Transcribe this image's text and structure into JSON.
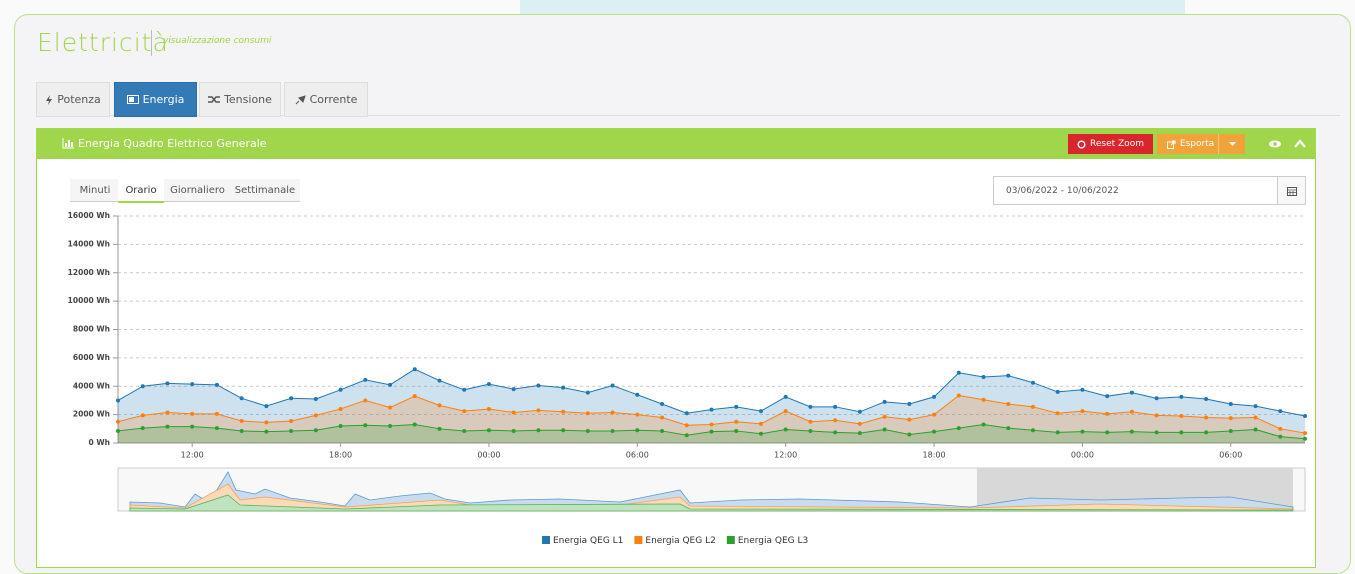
{
  "header": {
    "title": "Elettricità",
    "subtitle": "visualizzazione consumi"
  },
  "tabs": [
    "Potenza",
    "Energia",
    "Tensione",
    "Corrente"
  ],
  "panel": {
    "title": "Energia Quadro Elettrico Generale",
    "buttons": [
      "Reset Zoom",
      "Esporta"
    ]
  },
  "period_tabs": [
    "Minuti",
    "Orario",
    "Giornaliero",
    "Settimanale"
  ],
  "date_range": "03/06/2022 - 10/06/2022",
  "chart_data": {
    "type": "area",
    "categories": [
      null,
      null,
      null,
      "12:00",
      null,
      null,
      null,
      null,
      null,
      "18:00",
      null,
      null,
      null,
      null,
      null,
      "00:00",
      null,
      null,
      null,
      null,
      null,
      "06:00",
      null,
      null,
      null,
      null,
      null,
      "12:00",
      null,
      null,
      null,
      null,
      null,
      "18:00",
      null,
      null,
      null,
      null,
      null,
      "00:00",
      null,
      null,
      null,
      null,
      null,
      "06:00",
      null,
      null,
      null
    ],
    "ylim": [
      0,
      16000
    ],
    "yticks": [
      {
        "value": 0,
        "label": "0 Wh"
      },
      {
        "value": 2000,
        "label": "2000 Wh"
      },
      {
        "value": 4000,
        "label": "4000 Wh"
      },
      {
        "value": 6000,
        "label": "6000 Wh"
      },
      {
        "value": 8000,
        "label": "8000 Wh"
      },
      {
        "value": 10000,
        "label": "10000 Wh"
      },
      {
        "value": 12000,
        "label": "12000 Wh"
      },
      {
        "value": 14000,
        "label": "14000 Wh"
      },
      {
        "value": 16000,
        "label": "16000 Wh"
      }
    ],
    "grid": true,
    "series": [
      {
        "name": "Energia QEG L1",
        "color": "#1f77b4",
        "values": [
          3000,
          4000,
          4200,
          4150,
          4100,
          3150,
          2600,
          3150,
          3100,
          3750,
          4450,
          4100,
          5200,
          4400,
          3750,
          4150,
          3800,
          4050,
          3900,
          3550,
          4050,
          3400,
          2750,
          2100,
          2350,
          2550,
          2250,
          3250,
          2550,
          2550,
          2200,
          2900,
          2750,
          3250,
          4950,
          4650,
          4750,
          4250,
          3600,
          3750,
          3300,
          3550,
          3150,
          3250,
          3100,
          2750,
          2600,
          2250,
          1900
        ]
      },
      {
        "name": "Energia QEG L2",
        "color": "#ff7f0e",
        "values": [
          1500,
          1950,
          2150,
          2050,
          2050,
          1550,
          1450,
          1550,
          1950,
          2400,
          3000,
          2500,
          3300,
          2650,
          2250,
          2400,
          2150,
          2300,
          2200,
          2100,
          2150,
          2000,
          1800,
          1250,
          1300,
          1500,
          1350,
          2250,
          1500,
          1600,
          1350,
          1850,
          1650,
          2000,
          3350,
          3050,
          2750,
          2550,
          2100,
          2250,
          2050,
          2200,
          1950,
          1900,
          1800,
          1750,
          1800,
          1000,
          700
        ]
      },
      {
        "name": "Energia QEG L3",
        "color": "#2ca02c",
        "values": [
          850,
          1050,
          1150,
          1150,
          1050,
          850,
          800,
          850,
          900,
          1200,
          1250,
          1200,
          1300,
          1000,
          850,
          900,
          850,
          900,
          900,
          850,
          850,
          900,
          850,
          550,
          800,
          850,
          650,
          950,
          850,
          750,
          700,
          950,
          600,
          800,
          1050,
          1300,
          1050,
          900,
          750,
          800,
          750,
          800,
          750,
          750,
          750,
          850,
          950,
          450,
          300
        ]
      }
    ]
  }
}
